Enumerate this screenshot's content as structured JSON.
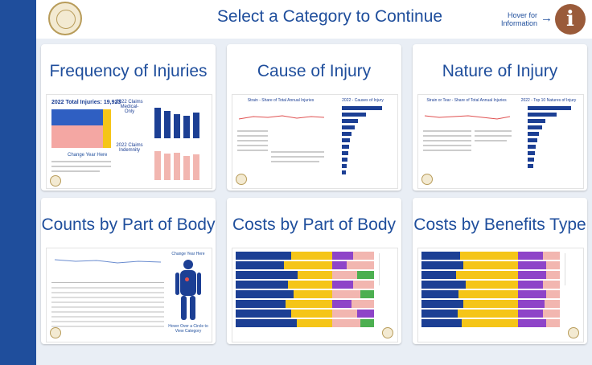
{
  "header": {
    "title": "Select a Category to Continue",
    "hover_hint": "Hover for Information",
    "arrow": "→",
    "info_glyph": "i"
  },
  "cards": [
    {
      "title": "Frequency of Injuries"
    },
    {
      "title": "Cause of Injury"
    },
    {
      "title": "Nature of Injury"
    },
    {
      "title": "Counts by Part of Body"
    },
    {
      "title": "Costs by Part of Body"
    },
    {
      "title": "Costs by Benefits Type"
    }
  ],
  "thumb_text": {
    "total_injuries": "2022 Total Injuries: 19,923",
    "claims_medical": "2022 Claims Medical-Only",
    "claims_indemnity": "2022 Claims Indemnity",
    "change_year": "Change Year Here",
    "cause_left": "Strain - Share of Total Annual Injuries",
    "cause_right": "2022 - Causes of Injury",
    "nature_left": "Strain or Tear - Share of Total Annual Injuries",
    "nature_right": "2022 - Top 10 Natures of Injury",
    "body_hover": "Hover Over a Circle to View Category"
  },
  "colors": {
    "accent": "#1f4e9c",
    "navy": "#1c3f94",
    "yellow": "#f5c518",
    "pink": "#f2b6b0",
    "purple": "#8e44c8",
    "green": "#4caf50",
    "seal": "#b89c5a",
    "info": "#9a5b3a"
  }
}
